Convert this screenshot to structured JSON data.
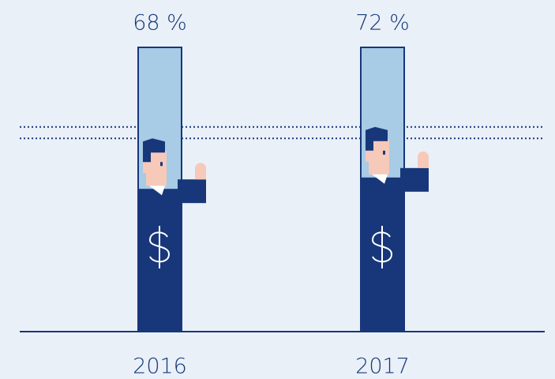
{
  "chart_data": {
    "type": "bar",
    "categories": [
      "2016",
      "2017"
    ],
    "values": [
      68,
      72
    ],
    "value_labels": [
      "68 %",
      "72 %"
    ],
    "ylim": [
      0,
      100
    ],
    "color": "#17377a"
  }
}
